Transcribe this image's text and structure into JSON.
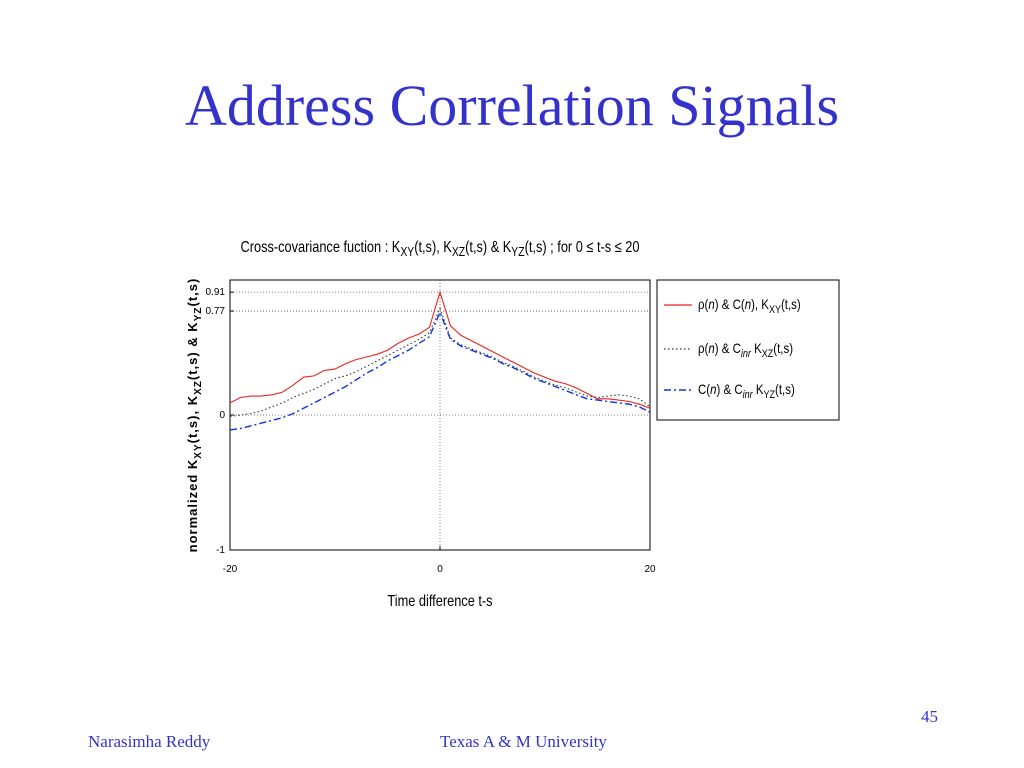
{
  "slide": {
    "title": "Address Correlation Signals",
    "footer_left": "Narasimha Reddy",
    "footer_center": "Texas A & M University",
    "page_number": "45"
  },
  "chart_data": {
    "type": "line",
    "title_parts": [
      {
        "t": "Cross-covariance fuction : K"
      },
      {
        "t": "XY",
        "sub": true
      },
      {
        "t": "(t,s), K"
      },
      {
        "t": "XZ",
        "sub": true
      },
      {
        "t": "(t,s) & K"
      },
      {
        "t": "YZ",
        "sub": true
      },
      {
        "t": "(t,s) ; for 0 ≤ t-s ≤ 20"
      }
    ],
    "xlabel": "Time difference t-s",
    "ylabel_parts": [
      {
        "t": "normalized K"
      },
      {
        "t": "XY",
        "sub": true
      },
      {
        "t": "(t,s), K"
      },
      {
        "t": "XZ",
        "sub": true
      },
      {
        "t": "(t,s) & K"
      },
      {
        "t": "YZ",
        "sub": true
      },
      {
        "t": "(t,s)"
      }
    ],
    "xlim": [
      -20,
      20
    ],
    "ylim": [
      -1,
      1
    ],
    "xticks": [
      {
        "value": -20,
        "label": "-20"
      },
      {
        "value": 0,
        "label": "0"
      },
      {
        "value": 20,
        "label": "20"
      }
    ],
    "yticks": [
      {
        "value": -1,
        "label": "-1"
      },
      {
        "value": 0,
        "label": "0"
      },
      {
        "value": 0.77,
        "label": "0.77"
      },
      {
        "value": 0.91,
        "label": "0.91"
      }
    ],
    "legend_position": "right",
    "x": [
      -20,
      -19,
      -18,
      -17,
      -16,
      -15,
      -14,
      -13,
      -12,
      -11,
      -10,
      -9,
      -8,
      -7,
      -6,
      -5,
      -4,
      -3,
      -2,
      -1,
      0,
      1,
      2,
      3,
      4,
      5,
      6,
      7,
      8,
      9,
      10,
      11,
      12,
      13,
      14,
      15,
      16,
      17,
      18,
      19,
      20
    ],
    "series": [
      {
        "color": "#ee2222",
        "dash": "",
        "legend_parts": [
          {
            "t": "ρ("
          },
          {
            "t": "n",
            "it": true
          },
          {
            "t": ") & C("
          },
          {
            "t": "n",
            "it": true
          },
          {
            "t": "),  K"
          },
          {
            "t": "XY",
            "sub": true
          },
          {
            "t": "(t,s)"
          }
        ],
        "values": [
          0.09,
          0.13,
          0.14,
          0.14,
          0.15,
          0.17,
          0.22,
          0.28,
          0.29,
          0.33,
          0.34,
          0.38,
          0.41,
          0.43,
          0.45,
          0.48,
          0.53,
          0.57,
          0.6,
          0.65,
          0.91,
          0.66,
          0.59,
          0.55,
          0.51,
          0.47,
          0.43,
          0.39,
          0.35,
          0.31,
          0.28,
          0.25,
          0.23,
          0.2,
          0.16,
          0.12,
          0.12,
          0.11,
          0.1,
          0.08,
          0.05
        ]
      },
      {
        "color": "#333333",
        "dash": "1.5,2.5",
        "legend_parts": [
          {
            "t": "ρ("
          },
          {
            "t": "n",
            "it": true
          },
          {
            "t": ") & C"
          },
          {
            "t": "inr",
            "sub": true,
            "it": true
          },
          {
            "t": "    K"
          },
          {
            "t": "XZ",
            "sub": true
          },
          {
            "t": "(t,s)"
          }
        ],
        "values": [
          -0.01,
          0.0,
          0.01,
          0.03,
          0.06,
          0.09,
          0.13,
          0.16,
          0.19,
          0.23,
          0.27,
          0.29,
          0.32,
          0.36,
          0.4,
          0.44,
          0.48,
          0.52,
          0.56,
          0.61,
          0.79,
          0.57,
          0.52,
          0.49,
          0.46,
          0.43,
          0.39,
          0.36,
          0.32,
          0.28,
          0.25,
          0.22,
          0.2,
          0.17,
          0.14,
          0.13,
          0.14,
          0.15,
          0.14,
          0.12,
          0.06
        ]
      },
      {
        "color": "#1133dd",
        "dash": "7,3,2,3",
        "legend_parts": [
          {
            "t": "C("
          },
          {
            "t": "n",
            "it": true
          },
          {
            "t": ") & C"
          },
          {
            "t": "inr",
            "sub": true,
            "it": true
          },
          {
            "t": "    K"
          },
          {
            "t": "YZ",
            "sub": true
          },
          {
            "t": "(t,s)"
          }
        ],
        "values": [
          -0.11,
          -0.1,
          -0.08,
          -0.06,
          -0.04,
          -0.02,
          0.01,
          0.05,
          0.09,
          0.13,
          0.17,
          0.21,
          0.26,
          0.31,
          0.35,
          0.4,
          0.44,
          0.48,
          0.53,
          0.58,
          0.76,
          0.56,
          0.51,
          0.48,
          0.45,
          0.42,
          0.38,
          0.35,
          0.31,
          0.27,
          0.24,
          0.21,
          0.18,
          0.15,
          0.12,
          0.11,
          0.1,
          0.09,
          0.08,
          0.06,
          0.02
        ]
      }
    ]
  }
}
